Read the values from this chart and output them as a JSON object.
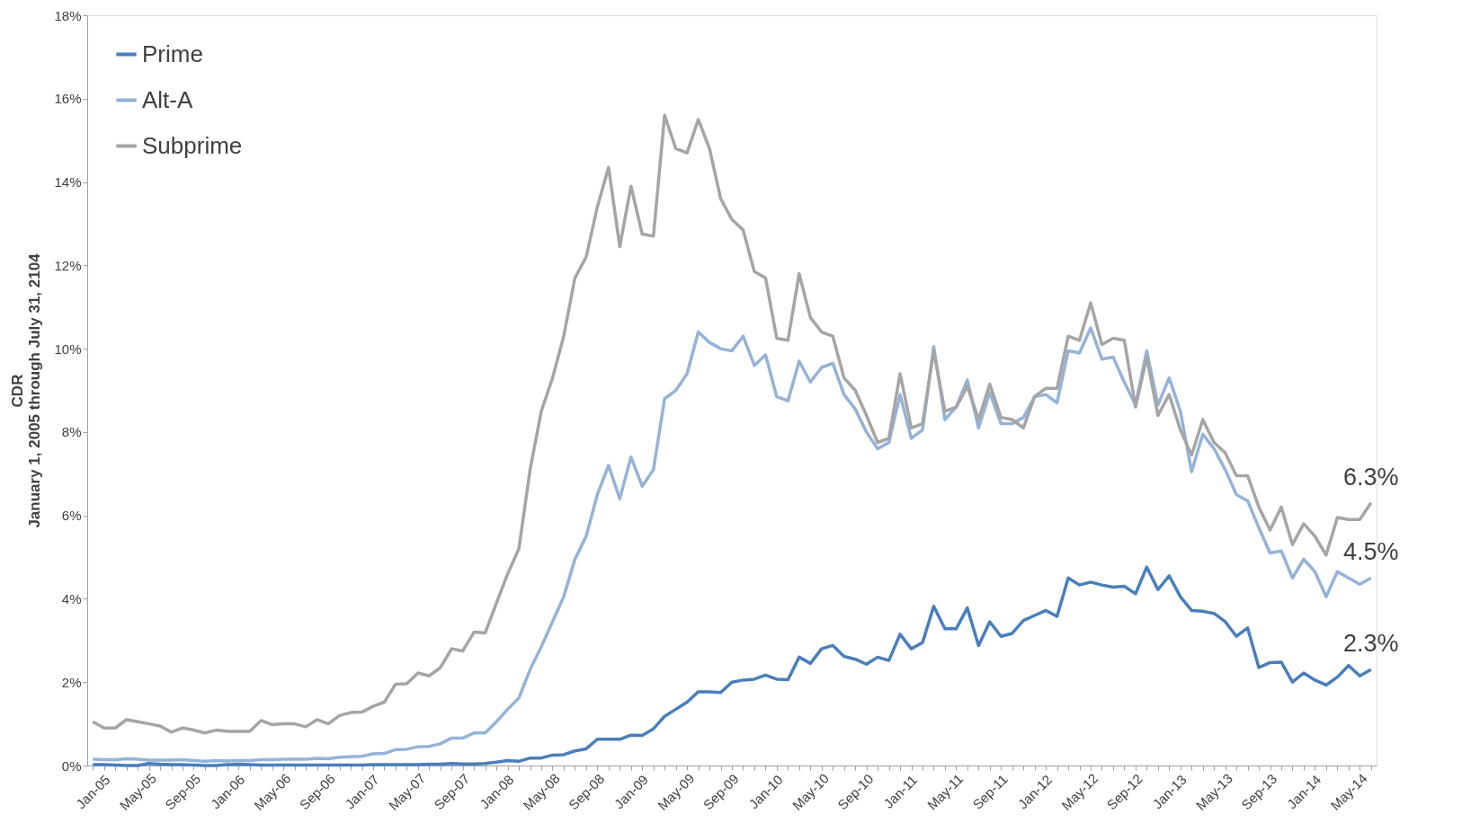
{
  "chart_data": {
    "type": "line",
    "ylabel": "CDR\nJanuary 1, 2005 through July 31, 2104",
    "categories": [
      "Jan-05",
      null,
      null,
      null,
      "May-05",
      null,
      null,
      null,
      "Sep-05",
      null,
      null,
      null,
      "Jan-06",
      null,
      null,
      null,
      "May-06",
      null,
      null,
      null,
      "Sep-06",
      null,
      null,
      null,
      "Jan-07",
      null,
      null,
      null,
      "May-07",
      null,
      null,
      null,
      "Sep-07",
      null,
      null,
      null,
      "Jan-08",
      null,
      null,
      null,
      "May-08",
      null,
      null,
      null,
      "Sep-08",
      null,
      null,
      null,
      "Jan-09",
      null,
      null,
      null,
      "May-09",
      null,
      null,
      null,
      "Sep-09",
      null,
      null,
      null,
      "Jan-10",
      null,
      null,
      null,
      "May-10",
      null,
      null,
      null,
      "Sep-10",
      null,
      null,
      null,
      "Jan-11",
      null,
      null,
      null,
      "May-11",
      null,
      null,
      null,
      "Sep-11",
      null,
      null,
      null,
      "Jan-12",
      null,
      null,
      null,
      "May-12",
      null,
      null,
      null,
      "Sep-12",
      null,
      null,
      null,
      "Jan-13",
      null,
      null,
      null,
      "May-13",
      null,
      null,
      null,
      "Sep-13",
      null,
      null,
      null,
      "Jan-14",
      null,
      null,
      null,
      "May-14",
      null,
      null
    ],
    "series": [
      {
        "name": "Prime",
        "color": "#4a7ebb",
        "values": [
          0.02,
          0.02,
          0.01,
          0.0,
          0.0,
          0.05,
          0.03,
          0.02,
          0.02,
          0.01,
          0.0,
          0.0,
          0.02,
          0.03,
          0.02,
          0.01,
          0.01,
          0.01,
          0.01,
          0.01,
          0.01,
          0.01,
          0.01,
          0.01,
          0.01,
          0.02,
          0.02,
          0.02,
          0.02,
          0.02,
          0.03,
          0.03,
          0.05,
          0.04,
          0.04,
          0.05,
          0.08,
          0.12,
          0.1,
          0.18,
          0.18,
          0.25,
          0.26,
          0.35,
          0.4,
          0.63,
          0.63,
          0.63,
          0.73,
          0.72,
          0.88,
          1.18,
          1.35,
          1.52,
          1.77,
          1.77,
          1.75,
          2.0,
          2.05,
          2.07,
          2.17,
          2.07,
          2.06,
          2.6,
          2.45,
          2.8,
          2.88,
          2.62,
          2.55,
          2.43,
          2.6,
          2.52,
          3.15,
          2.8,
          2.95,
          3.82,
          3.28,
          3.28,
          3.78,
          2.88,
          3.45,
          3.1,
          3.17,
          3.48,
          3.6,
          3.72,
          3.58,
          4.5,
          4.33,
          4.4,
          4.33,
          4.28,
          4.3,
          4.12,
          4.76,
          4.22,
          4.55,
          4.05,
          3.72,
          3.7,
          3.65,
          3.45,
          3.1,
          3.3,
          2.35,
          2.47,
          2.48,
          2.0,
          2.22,
          2.05,
          1.93,
          2.12,
          2.4,
          2.15,
          2.3
        ],
        "value_labels": [
          null,
          null,
          null,
          null,
          null,
          null,
          null,
          null,
          null,
          null,
          null,
          null,
          null,
          null,
          null,
          null,
          null,
          null,
          null,
          null,
          null,
          null,
          null,
          null,
          null,
          null,
          null,
          null,
          null,
          null,
          null,
          null,
          null,
          null,
          null,
          null,
          null,
          null,
          null,
          null,
          null,
          null,
          null,
          null,
          null,
          null,
          null,
          null,
          null,
          null,
          null,
          null,
          null,
          null,
          null,
          null,
          null,
          null,
          null,
          null,
          null,
          null,
          null,
          null,
          null,
          null,
          null,
          null,
          null,
          null,
          null,
          null,
          null,
          null,
          null,
          null,
          null,
          null,
          null,
          null,
          null,
          null,
          null,
          null,
          null,
          null,
          null,
          null,
          null,
          null,
          null,
          null,
          null,
          null,
          null,
          null,
          null,
          null,
          null,
          null,
          null,
          null,
          null,
          null,
          null,
          null,
          null,
          null,
          null,
          null,
          null,
          null,
          null,
          null,
          "2.3%"
        ]
      },
      {
        "name": "Alt-A",
        "color": "#95b3d7",
        "values": [
          0.15,
          0.14,
          0.14,
          0.16,
          0.15,
          0.13,
          0.13,
          0.13,
          0.14,
          0.12,
          0.1,
          0.12,
          0.11,
          0.12,
          0.12,
          0.14,
          0.14,
          0.15,
          0.15,
          0.15,
          0.17,
          0.16,
          0.2,
          0.21,
          0.22,
          0.28,
          0.29,
          0.38,
          0.39,
          0.45,
          0.46,
          0.52,
          0.66,
          0.66,
          0.78,
          0.78,
          1.05,
          1.35,
          1.62,
          2.3,
          2.85,
          3.45,
          4.05,
          4.95,
          5.5,
          6.5,
          7.2,
          6.4,
          7.4,
          6.7,
          7.1,
          8.8,
          9.0,
          9.4,
          10.4,
          10.15,
          10.0,
          9.95,
          10.3,
          9.6,
          9.85,
          8.85,
          8.75,
          9.7,
          9.2,
          9.55,
          9.65,
          8.9,
          8.55,
          8.0,
          7.6,
          7.75,
          8.9,
          7.85,
          8.05,
          10.05,
          8.3,
          8.6,
          9.25,
          8.1,
          8.95,
          8.2,
          8.2,
          8.35,
          8.85,
          8.9,
          8.7,
          9.95,
          9.9,
          10.5,
          9.75,
          9.8,
          9.2,
          8.65,
          9.95,
          8.65,
          9.3,
          8.5,
          7.05,
          7.95,
          7.6,
          7.1,
          6.5,
          6.35,
          5.7,
          5.1,
          5.15,
          4.5,
          4.95,
          4.65,
          4.05,
          4.65,
          4.5,
          4.35,
          4.5
        ],
        "value_labels": [
          null,
          null,
          null,
          null,
          null,
          null,
          null,
          null,
          null,
          null,
          null,
          null,
          null,
          null,
          null,
          null,
          null,
          null,
          null,
          null,
          null,
          null,
          null,
          null,
          null,
          null,
          null,
          null,
          null,
          null,
          null,
          null,
          null,
          null,
          null,
          null,
          null,
          null,
          null,
          null,
          null,
          null,
          null,
          null,
          null,
          null,
          null,
          null,
          null,
          null,
          null,
          null,
          null,
          null,
          null,
          null,
          null,
          null,
          null,
          null,
          null,
          null,
          null,
          null,
          null,
          null,
          null,
          null,
          null,
          null,
          null,
          null,
          null,
          null,
          null,
          null,
          null,
          null,
          null,
          null,
          null,
          null,
          null,
          null,
          null,
          null,
          null,
          null,
          null,
          null,
          null,
          null,
          null,
          null,
          null,
          null,
          null,
          null,
          null,
          null,
          null,
          null,
          null,
          null,
          null,
          null,
          null,
          null,
          null,
          null,
          null,
          null,
          null,
          null,
          "4.5%"
        ]
      },
      {
        "name": "Subprime",
        "color": "#a5a5a5",
        "values": [
          1.05,
          0.9,
          0.9,
          1.1,
          1.05,
          1.0,
          0.95,
          0.8,
          0.9,
          0.85,
          0.78,
          0.85,
          0.82,
          0.82,
          0.82,
          1.08,
          0.98,
          1.0,
          1.0,
          0.93,
          1.1,
          1.0,
          1.2,
          1.27,
          1.28,
          1.42,
          1.52,
          1.95,
          1.96,
          2.22,
          2.15,
          2.35,
          2.8,
          2.75,
          3.2,
          3.18,
          3.9,
          4.6,
          5.2,
          7.1,
          8.5,
          9.3,
          10.3,
          11.7,
          12.2,
          13.4,
          14.35,
          12.45,
          13.9,
          12.75,
          12.7,
          15.6,
          14.8,
          14.7,
          15.5,
          14.8,
          13.6,
          13.1,
          12.85,
          11.85,
          11.7,
          10.25,
          10.2,
          11.8,
          10.75,
          10.4,
          10.3,
          9.3,
          9.0,
          8.4,
          7.75,
          7.85,
          9.4,
          8.1,
          8.2,
          9.95,
          8.5,
          8.6,
          9.1,
          8.3,
          9.15,
          8.35,
          8.3,
          8.1,
          8.85,
          9.05,
          9.05,
          10.3,
          10.2,
          11.1,
          10.1,
          10.25,
          10.2,
          8.6,
          9.8,
          8.4,
          8.9,
          8.05,
          7.45,
          8.3,
          7.75,
          7.5,
          6.95,
          6.95,
          6.2,
          5.65,
          6.2,
          5.3,
          5.8,
          5.5,
          5.05,
          5.95,
          5.9,
          5.9,
          6.3
        ],
        "value_labels": [
          null,
          null,
          null,
          null,
          null,
          null,
          null,
          null,
          null,
          null,
          null,
          null,
          null,
          null,
          null,
          null,
          null,
          null,
          null,
          null,
          null,
          null,
          null,
          null,
          null,
          null,
          null,
          null,
          null,
          null,
          null,
          null,
          null,
          null,
          null,
          null,
          null,
          null,
          null,
          null,
          null,
          null,
          null,
          null,
          null,
          null,
          null,
          null,
          null,
          null,
          null,
          null,
          null,
          null,
          null,
          null,
          null,
          null,
          null,
          null,
          null,
          null,
          null,
          null,
          null,
          null,
          null,
          null,
          null,
          null,
          null,
          null,
          null,
          null,
          null,
          null,
          null,
          null,
          null,
          null,
          null,
          null,
          null,
          null,
          null,
          null,
          null,
          null,
          null,
          null,
          null,
          null,
          null,
          null,
          null,
          null,
          null,
          null,
          null,
          null,
          null,
          null,
          null,
          null,
          null,
          null,
          null,
          null,
          null,
          null,
          null,
          null,
          null,
          null,
          "6.3%"
        ]
      }
    ],
    "ylim": [
      0,
      18
    ],
    "yticks": [
      {
        "value": 0,
        "label": "0%"
      },
      {
        "value": 2,
        "label": "2%"
      },
      {
        "value": 4,
        "label": "4%"
      },
      {
        "value": 6,
        "label": "6%"
      },
      {
        "value": 8,
        "label": "8%"
      },
      {
        "value": 10,
        "label": "10%"
      },
      {
        "value": 12,
        "label": "12%"
      },
      {
        "value": 14,
        "label": "14%"
      },
      {
        "value": 16,
        "label": "16%"
      },
      {
        "value": 18,
        "label": "18%"
      }
    ],
    "legend": "top left",
    "marker": "none",
    "line_style": "solid"
  }
}
